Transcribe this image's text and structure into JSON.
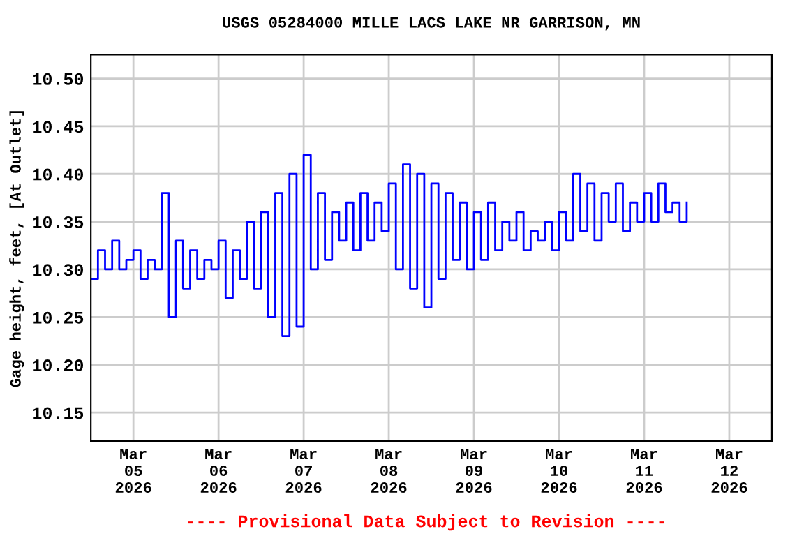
{
  "chart_data": {
    "type": "step",
    "title": "USGS 05284000 MILLE LACS LAKE NR GARRISON, MN",
    "ylabel": "Gage height, feet, [At Outlet]",
    "annotations": [
      "---- Provisional Data Subject to Revision ----"
    ],
    "x": [
      "2026-03-04T12:00",
      "2026-03-04T14:00",
      "2026-03-04T16:00",
      "2026-03-04T18:00",
      "2026-03-04T20:00",
      "2026-03-04T22:00",
      "2026-03-05T00:00",
      "2026-03-05T02:00",
      "2026-03-05T04:00",
      "2026-03-05T06:00",
      "2026-03-05T08:00",
      "2026-03-05T10:00",
      "2026-03-05T12:00",
      "2026-03-05T14:00",
      "2026-03-05T16:00",
      "2026-03-05T18:00",
      "2026-03-05T20:00",
      "2026-03-05T22:00",
      "2026-03-06T00:00",
      "2026-03-06T02:00",
      "2026-03-06T04:00",
      "2026-03-06T06:00",
      "2026-03-06T08:00",
      "2026-03-06T10:00",
      "2026-03-06T12:00",
      "2026-03-06T14:00",
      "2026-03-06T16:00",
      "2026-03-06T18:00",
      "2026-03-06T20:00",
      "2026-03-06T22:00",
      "2026-03-07T00:00",
      "2026-03-07T02:00",
      "2026-03-07T04:00",
      "2026-03-07T06:00",
      "2026-03-07T08:00",
      "2026-03-07T10:00",
      "2026-03-07T12:00",
      "2026-03-07T14:00",
      "2026-03-07T16:00",
      "2026-03-07T18:00",
      "2026-03-07T20:00",
      "2026-03-07T22:00",
      "2026-03-08T00:00",
      "2026-03-08T02:00",
      "2026-03-08T04:00",
      "2026-03-08T06:00",
      "2026-03-08T08:00",
      "2026-03-08T10:00",
      "2026-03-08T12:00",
      "2026-03-08T14:00",
      "2026-03-08T16:00",
      "2026-03-08T18:00",
      "2026-03-08T20:00",
      "2026-03-08T22:00",
      "2026-03-09T00:00",
      "2026-03-09T02:00",
      "2026-03-09T04:00",
      "2026-03-09T06:00",
      "2026-03-09T08:00",
      "2026-03-09T10:00",
      "2026-03-09T12:00",
      "2026-03-09T14:00",
      "2026-03-09T16:00",
      "2026-03-09T18:00",
      "2026-03-09T20:00",
      "2026-03-09T22:00",
      "2026-03-10T00:00",
      "2026-03-10T02:00",
      "2026-03-10T04:00",
      "2026-03-10T06:00",
      "2026-03-10T08:00",
      "2026-03-10T10:00",
      "2026-03-10T12:00",
      "2026-03-10T14:00",
      "2026-03-10T16:00",
      "2026-03-10T18:00",
      "2026-03-10T20:00",
      "2026-03-10T22:00",
      "2026-03-11T00:00",
      "2026-03-11T02:00",
      "2026-03-11T04:00",
      "2026-03-11T06:00",
      "2026-03-11T08:00",
      "2026-03-11T10:00",
      "2026-03-11T12:00"
    ],
    "series": [
      {
        "color": "#0000ff",
        "values": [
          10.29,
          10.32,
          10.3,
          10.33,
          10.3,
          10.31,
          10.32,
          10.29,
          10.31,
          10.3,
          10.38,
          10.25,
          10.33,
          10.28,
          10.32,
          10.29,
          10.31,
          10.3,
          10.33,
          10.27,
          10.32,
          10.29,
          10.35,
          10.28,
          10.36,
          10.25,
          10.38,
          10.23,
          10.4,
          10.24,
          10.42,
          10.3,
          10.38,
          10.31,
          10.36,
          10.33,
          10.37,
          10.32,
          10.38,
          10.33,
          10.37,
          10.34,
          10.39,
          10.3,
          10.41,
          10.28,
          10.4,
          10.26,
          10.39,
          10.29,
          10.38,
          10.31,
          10.37,
          10.3,
          10.36,
          10.31,
          10.37,
          10.32,
          10.35,
          10.33,
          10.36,
          10.32,
          10.34,
          10.33,
          10.35,
          10.32,
          10.36,
          10.33,
          10.4,
          10.34,
          10.39,
          10.33,
          10.38,
          10.35,
          10.39,
          10.34,
          10.37,
          10.35,
          10.38,
          10.35,
          10.39,
          10.36,
          10.37,
          10.35,
          10.37
        ]
      }
    ],
    "xlim": [
      "2026-03-04T12:00",
      "2026-03-12T12:00"
    ],
    "xticks": [
      {
        "value": "2026-03-05",
        "label": "Mar\n05\n2026"
      },
      {
        "value": "2026-03-06",
        "label": "Mar\n06\n2026"
      },
      {
        "value": "2026-03-07",
        "label": "Mar\n07\n2026"
      },
      {
        "value": "2026-03-08",
        "label": "Mar\n08\n2026"
      },
      {
        "value": "2026-03-09",
        "label": "Mar\n09\n2026"
      },
      {
        "value": "2026-03-10",
        "label": "Mar\n10\n2026"
      },
      {
        "value": "2026-03-11",
        "label": "Mar\n11\n2026"
      },
      {
        "value": "2026-03-12",
        "label": "Mar\n12\n2026"
      }
    ],
    "ylim": [
      10.12,
      10.525
    ],
    "yticks": [
      {
        "value": 10.15,
        "label": "10.15"
      },
      {
        "value": 10.2,
        "label": "10.20"
      },
      {
        "value": 10.25,
        "label": "10.25"
      },
      {
        "value": 10.3,
        "label": "10.30"
      },
      {
        "value": 10.35,
        "label": "10.35"
      },
      {
        "value": 10.4,
        "label": "10.40"
      },
      {
        "value": 10.45,
        "label": "10.45"
      },
      {
        "value": 10.5,
        "label": "10.50"
      }
    ],
    "grid": true,
    "legend": false
  }
}
